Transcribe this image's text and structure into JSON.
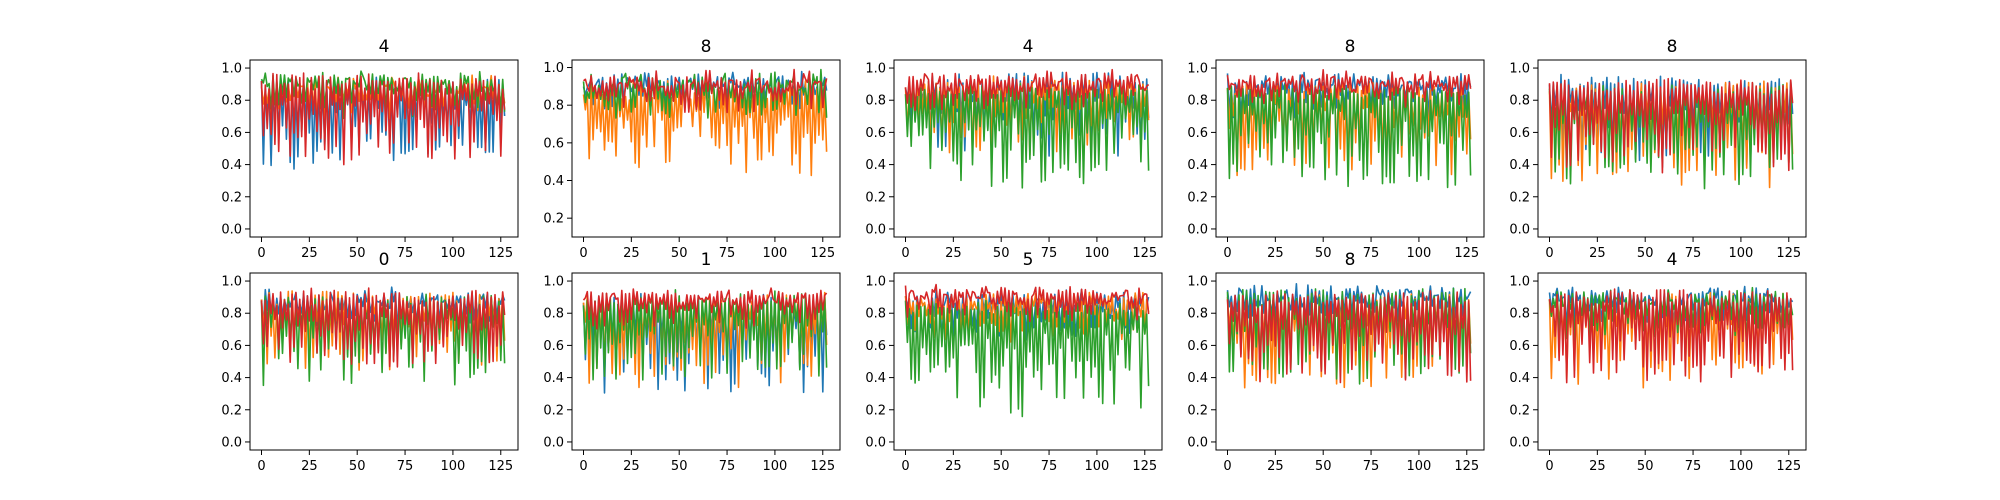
{
  "figure": {
    "layout": "2 rows x 5 columns of line-plot panels"
  },
  "chart_data": [
    {
      "type": "line",
      "title": "4",
      "xlim": [
        -6,
        134
      ],
      "ylim": [
        -0.05,
        1.05
      ],
      "xticks": [
        0,
        25,
        50,
        75,
        100,
        125
      ],
      "yticks": [
        0.0,
        0.2,
        0.4,
        0.6,
        0.8,
        1.0
      ],
      "series": [
        {
          "color": "#1f77b4",
          "style": "deep",
          "mean": 0.72,
          "amp": 0.35,
          "seed": 11
        },
        {
          "color": "#ff7f0e",
          "style": "mid",
          "mean": 0.75,
          "amp": 0.25,
          "seed": 12
        },
        {
          "color": "#2ca02c",
          "style": "mid",
          "mean": 0.85,
          "amp": 0.25,
          "seed": 13
        },
        {
          "color": "#d62728",
          "style": "deep",
          "mean": 0.8,
          "amp": 0.35,
          "seed": 14
        }
      ]
    },
    {
      "type": "line",
      "title": "8",
      "xlim": [
        -6,
        134
      ],
      "ylim": [
        0.1,
        1.04
      ],
      "xticks": [
        0,
        25,
        50,
        75,
        100,
        125
      ],
      "yticks": [
        0.2,
        0.4,
        0.6,
        0.8,
        1.0
      ],
      "series": [
        {
          "color": "#1f77b4",
          "style": "mid",
          "mean": 0.85,
          "amp": 0.18,
          "seed": 21
        },
        {
          "color": "#ff7f0e",
          "style": "deep",
          "mean": 0.7,
          "amp": 0.3,
          "seed": 22
        },
        {
          "color": "#2ca02c",
          "style": "mid",
          "mean": 0.85,
          "amp": 0.25,
          "seed": 23
        },
        {
          "color": "#d62728",
          "style": "mid",
          "mean": 0.85,
          "amp": 0.18,
          "seed": 24
        }
      ]
    },
    {
      "type": "line",
      "title": "4",
      "xlim": [
        -6,
        134
      ],
      "ylim": [
        -0.05,
        1.05
      ],
      "xticks": [
        0,
        25,
        50,
        75,
        100,
        125
      ],
      "yticks": [
        0.0,
        0.2,
        0.4,
        0.6,
        0.8,
        1.0
      ],
      "series": [
        {
          "color": "#1f77b4",
          "style": "deep",
          "mean": 0.8,
          "amp": 0.3,
          "seed": 31
        },
        {
          "color": "#ff7f0e",
          "style": "deep",
          "mean": 0.75,
          "amp": 0.3,
          "seed": 32
        },
        {
          "color": "#2ca02c",
          "style": "deep",
          "mean": 0.6,
          "amp": 0.4,
          "seed": 33
        },
        {
          "color": "#d62728",
          "style": "mid",
          "mean": 0.85,
          "amp": 0.2,
          "seed": 34
        }
      ]
    },
    {
      "type": "line",
      "title": "8",
      "xlim": [
        -6,
        134
      ],
      "ylim": [
        -0.05,
        1.05
      ],
      "xticks": [
        0,
        25,
        50,
        75,
        100,
        125
      ],
      "yticks": [
        0.0,
        0.2,
        0.4,
        0.6,
        0.8,
        1.0
      ],
      "series": [
        {
          "color": "#1f77b4",
          "style": "mid",
          "mean": 0.8,
          "amp": 0.25,
          "seed": 41
        },
        {
          "color": "#ff7f0e",
          "style": "deep",
          "mean": 0.65,
          "amp": 0.35,
          "seed": 42
        },
        {
          "color": "#2ca02c",
          "style": "deep",
          "mean": 0.6,
          "amp": 0.4,
          "seed": 43
        },
        {
          "color": "#d62728",
          "style": "mid",
          "mean": 0.85,
          "amp": 0.2,
          "seed": 44
        }
      ]
    },
    {
      "type": "line",
      "title": "8",
      "xlim": [
        -6,
        134
      ],
      "ylim": [
        -0.05,
        1.05
      ],
      "xticks": [
        0,
        25,
        50,
        75,
        100,
        125
      ],
      "yticks": [
        0.0,
        0.2,
        0.4,
        0.6,
        0.8,
        1.0
      ],
      "series": [
        {
          "color": "#1f77b4",
          "style": "deep",
          "mean": 0.75,
          "amp": 0.35,
          "seed": 51
        },
        {
          "color": "#ff7f0e",
          "style": "deep",
          "mean": 0.6,
          "amp": 0.4,
          "seed": 52
        },
        {
          "color": "#2ca02c",
          "style": "deep",
          "mean": 0.6,
          "amp": 0.4,
          "seed": 53
        },
        {
          "color": "#d62728",
          "style": "deep",
          "mean": 0.7,
          "amp": 0.35,
          "seed": 54
        }
      ]
    },
    {
      "type": "line",
      "title": "0",
      "xlim": [
        -6,
        134
      ],
      "ylim": [
        -0.05,
        1.05
      ],
      "xticks": [
        0,
        25,
        50,
        75,
        100,
        125
      ],
      "yticks": [
        0.0,
        0.2,
        0.4,
        0.6,
        0.8,
        1.0
      ],
      "series": [
        {
          "color": "#1f77b4",
          "style": "mid",
          "mean": 0.75,
          "amp": 0.25,
          "seed": 61
        },
        {
          "color": "#ff7f0e",
          "style": "deep",
          "mean": 0.7,
          "amp": 0.3,
          "seed": 62
        },
        {
          "color": "#2ca02c",
          "style": "deep",
          "mean": 0.65,
          "amp": 0.35,
          "seed": 63
        },
        {
          "color": "#d62728",
          "style": "deep",
          "mean": 0.75,
          "amp": 0.3,
          "seed": 64
        }
      ]
    },
    {
      "type": "line",
      "title": "1",
      "xlim": [
        -6,
        134
      ],
      "ylim": [
        -0.05,
        1.05
      ],
      "xticks": [
        0,
        25,
        50,
        75,
        100,
        125
      ],
      "yticks": [
        0.0,
        0.2,
        0.4,
        0.6,
        0.8,
        1.0
      ],
      "series": [
        {
          "color": "#1f77b4",
          "style": "deep",
          "mean": 0.65,
          "amp": 0.4,
          "seed": 71
        },
        {
          "color": "#ff7f0e",
          "style": "deep",
          "mean": 0.65,
          "amp": 0.35,
          "seed": 72
        },
        {
          "color": "#2ca02c",
          "style": "deep",
          "mean": 0.7,
          "amp": 0.35,
          "seed": 73
        },
        {
          "color": "#d62728",
          "style": "mid",
          "mean": 0.8,
          "amp": 0.25,
          "seed": 74
        }
      ]
    },
    {
      "type": "line",
      "title": "5",
      "xlim": [
        -6,
        134
      ],
      "ylim": [
        -0.05,
        1.05
      ],
      "xticks": [
        0,
        25,
        50,
        75,
        100,
        125
      ],
      "yticks": [
        0.0,
        0.2,
        0.4,
        0.6,
        0.8,
        1.0
      ],
      "series": [
        {
          "color": "#1f77b4",
          "style": "mid",
          "mean": 0.7,
          "amp": 0.3,
          "seed": 81
        },
        {
          "color": "#ff7f0e",
          "style": "mid",
          "mean": 0.7,
          "amp": 0.3,
          "seed": 82
        },
        {
          "color": "#2ca02c",
          "style": "deep",
          "mean": 0.55,
          "amp": 0.45,
          "seed": 83
        },
        {
          "color": "#d62728",
          "style": "mid",
          "mean": 0.85,
          "amp": 0.2,
          "seed": 84
        }
      ]
    },
    {
      "type": "line",
      "title": "8",
      "xlim": [
        -6,
        134
      ],
      "ylim": [
        -0.05,
        1.05
      ],
      "xticks": [
        0,
        25,
        50,
        75,
        100,
        125
      ],
      "yticks": [
        0.0,
        0.2,
        0.4,
        0.6,
        0.8,
        1.0
      ],
      "series": [
        {
          "color": "#1f77b4",
          "style": "mid",
          "mean": 0.85,
          "amp": 0.2,
          "seed": 91
        },
        {
          "color": "#ff7f0e",
          "style": "deep",
          "mean": 0.65,
          "amp": 0.35,
          "seed": 92
        },
        {
          "color": "#2ca02c",
          "style": "deep",
          "mean": 0.75,
          "amp": 0.35,
          "seed": 93
        },
        {
          "color": "#d62728",
          "style": "deep",
          "mean": 0.7,
          "amp": 0.35,
          "seed": 94
        }
      ]
    },
    {
      "type": "line",
      "title": "4",
      "xlim": [
        -6,
        134
      ],
      "ylim": [
        -0.05,
        1.05
      ],
      "xticks": [
        0,
        25,
        50,
        75,
        100,
        125
      ],
      "yticks": [
        0.0,
        0.2,
        0.4,
        0.6,
        0.8,
        1.0
      ],
      "series": [
        {
          "color": "#1f77b4",
          "style": "mid",
          "mean": 0.8,
          "amp": 0.25,
          "seed": 101
        },
        {
          "color": "#ff7f0e",
          "style": "deep",
          "mean": 0.65,
          "amp": 0.35,
          "seed": 102
        },
        {
          "color": "#2ca02c",
          "style": "mid",
          "mean": 0.75,
          "amp": 0.3,
          "seed": 103
        },
        {
          "color": "#d62728",
          "style": "deep",
          "mean": 0.75,
          "amp": 0.35,
          "seed": 104
        }
      ]
    }
  ]
}
